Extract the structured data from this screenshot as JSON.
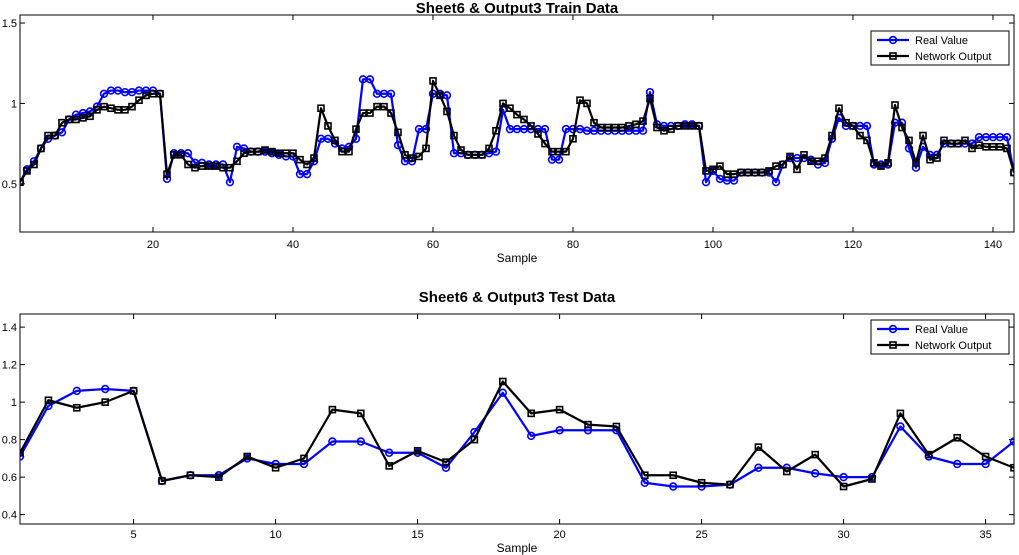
{
  "chart_data": [
    {
      "type": "line",
      "title": "Sheet6 & Output3 Train Data",
      "xlabel": "Sample",
      "ylabel": "",
      "xlim": [
        1,
        143
      ],
      "ylim": [
        0.2,
        1.55
      ],
      "xticks": [
        20,
        40,
        60,
        80,
        100,
        120,
        140
      ],
      "yticks": [
        0.5,
        1,
        1.5
      ],
      "ytick_labels": [
        "0.5",
        "1",
        "1.5"
      ],
      "grid": false,
      "legend_position": "top-right",
      "series": [
        {
          "name": "Real Value",
          "color": "#0000ff",
          "marker": "circle",
          "values": [
            0.51,
            0.59,
            0.64,
            0.72,
            0.78,
            0.8,
            0.82,
            0.9,
            0.93,
            0.94,
            0.95,
            0.98,
            1.06,
            1.08,
            1.08,
            1.07,
            1.07,
            1.08,
            1.08,
            1.08,
            1.06,
            0.53,
            0.69,
            0.69,
            0.69,
            0.63,
            0.63,
            0.62,
            0.62,
            0.62,
            0.51,
            0.73,
            0.72,
            0.7,
            0.7,
            0.7,
            0.69,
            0.68,
            0.67,
            0.67,
            0.56,
            0.56,
            0.64,
            0.78,
            0.78,
            0.75,
            0.72,
            0.73,
            0.78,
            1.15,
            1.15,
            1.06,
            1.06,
            1.06,
            0.74,
            0.64,
            0.64,
            0.84,
            0.84,
            1.06,
            1.06,
            1.05,
            0.69,
            0.69,
            0.68,
            0.68,
            0.68,
            0.69,
            0.7,
            0.96,
            0.84,
            0.84,
            0.84,
            0.84,
            0.84,
            0.84,
            0.65,
            0.65,
            0.84,
            0.84,
            0.84,
            0.83,
            0.83,
            0.83,
            0.83,
            0.83,
            0.83,
            0.83,
            0.83,
            0.83,
            1.07,
            0.87,
            0.86,
            0.86,
            0.86,
            0.87,
            0.87,
            0.86,
            0.51,
            0.58,
            0.53,
            0.52,
            0.52,
            0.57,
            0.57,
            0.57,
            0.57,
            0.57,
            0.51,
            0.62,
            0.66,
            0.66,
            0.66,
            0.65,
            0.62,
            0.63,
            0.78,
            0.91,
            0.86,
            0.86,
            0.86,
            0.86,
            0.62,
            0.62,
            0.62,
            0.88,
            0.88,
            0.72,
            0.6,
            0.73,
            0.68,
            0.68,
            0.75,
            0.75,
            0.75,
            0.75,
            0.75,
            0.79,
            0.79,
            0.79,
            0.79,
            0.79,
            0.57
          ]
        },
        {
          "name": "Network Output",
          "color": "#000000",
          "marker": "square",
          "values": [
            0.51,
            0.58,
            0.62,
            0.72,
            0.8,
            0.8,
            0.88,
            0.9,
            0.9,
            0.91,
            0.92,
            0.96,
            0.98,
            0.97,
            0.96,
            0.96,
            0.98,
            1.02,
            1.05,
            1.06,
            1.06,
            0.56,
            0.68,
            0.68,
            0.62,
            0.6,
            0.61,
            0.61,
            0.61,
            0.6,
            0.6,
            0.64,
            0.69,
            0.7,
            0.7,
            0.71,
            0.7,
            0.69,
            0.69,
            0.69,
            0.65,
            0.62,
            0.66,
            0.97,
            0.86,
            0.77,
            0.7,
            0.7,
            0.84,
            0.94,
            0.94,
            0.98,
            0.98,
            0.94,
            0.82,
            0.68,
            0.66,
            0.67,
            0.72,
            1.14,
            1.05,
            0.95,
            0.8,
            0.71,
            0.68,
            0.68,
            0.68,
            0.72,
            0.83,
            1.0,
            0.97,
            0.93,
            0.9,
            0.86,
            0.81,
            0.75,
            0.7,
            0.7,
            0.7,
            0.78,
            1.02,
            1.0,
            0.88,
            0.85,
            0.85,
            0.85,
            0.85,
            0.86,
            0.87,
            0.89,
            1.03,
            0.85,
            0.83,
            0.84,
            0.86,
            0.86,
            0.86,
            0.86,
            0.58,
            0.59,
            0.61,
            0.56,
            0.56,
            0.57,
            0.57,
            0.57,
            0.57,
            0.58,
            0.61,
            0.62,
            0.67,
            0.59,
            0.68,
            0.64,
            0.64,
            0.66,
            0.8,
            0.97,
            0.88,
            0.86,
            0.8,
            0.77,
            0.63,
            0.61,
            0.63,
            0.99,
            0.85,
            0.77,
            0.63,
            0.8,
            0.65,
            0.66,
            0.77,
            0.75,
            0.75,
            0.77,
            0.72,
            0.74,
            0.73,
            0.73,
            0.73,
            0.72,
            0.57
          ]
        }
      ]
    },
    {
      "type": "line",
      "title": "Sheet6 & Output3 Test Data",
      "xlabel": "Sample",
      "ylabel": "",
      "xlim": [
        1,
        36
      ],
      "ylim": [
        0.35,
        1.47
      ],
      "xticks": [
        5,
        10,
        15,
        20,
        25,
        30,
        35
      ],
      "yticks": [
        0.4,
        0.6,
        0.8,
        1,
        1.2,
        1.4
      ],
      "ytick_labels": [
        "0.4",
        "0.6",
        "0.8",
        "1",
        "1.2",
        "1.4"
      ],
      "grid": false,
      "legend_position": "top-right",
      "series": [
        {
          "name": "Real Value",
          "color": "#0000ff",
          "marker": "circle",
          "values": [
            0.71,
            0.98,
            1.06,
            1.07,
            1.06,
            0.58,
            0.61,
            0.61,
            0.7,
            0.67,
            0.67,
            0.79,
            0.79,
            0.73,
            0.73,
            0.65,
            0.84,
            1.05,
            0.82,
            0.85,
            0.85,
            0.85,
            0.57,
            0.55,
            0.55,
            0.56,
            0.65,
            0.65,
            0.62,
            0.6,
            0.6,
            0.87,
            0.71,
            0.67,
            0.67,
            0.79
          ]
        },
        {
          "name": "Network Output",
          "color": "#000000",
          "marker": "square",
          "values": [
            0.73,
            1.01,
            0.97,
            1.0,
            1.06,
            0.58,
            0.61,
            0.6,
            0.71,
            0.65,
            0.7,
            0.96,
            0.94,
            0.66,
            0.74,
            0.68,
            0.8,
            1.11,
            0.94,
            0.96,
            0.88,
            0.87,
            0.61,
            0.61,
            0.57,
            0.56,
            0.76,
            0.63,
            0.72,
            0.55,
            0.59,
            0.94,
            0.72,
            0.81,
            0.71,
            0.65
          ]
        }
      ]
    }
  ]
}
